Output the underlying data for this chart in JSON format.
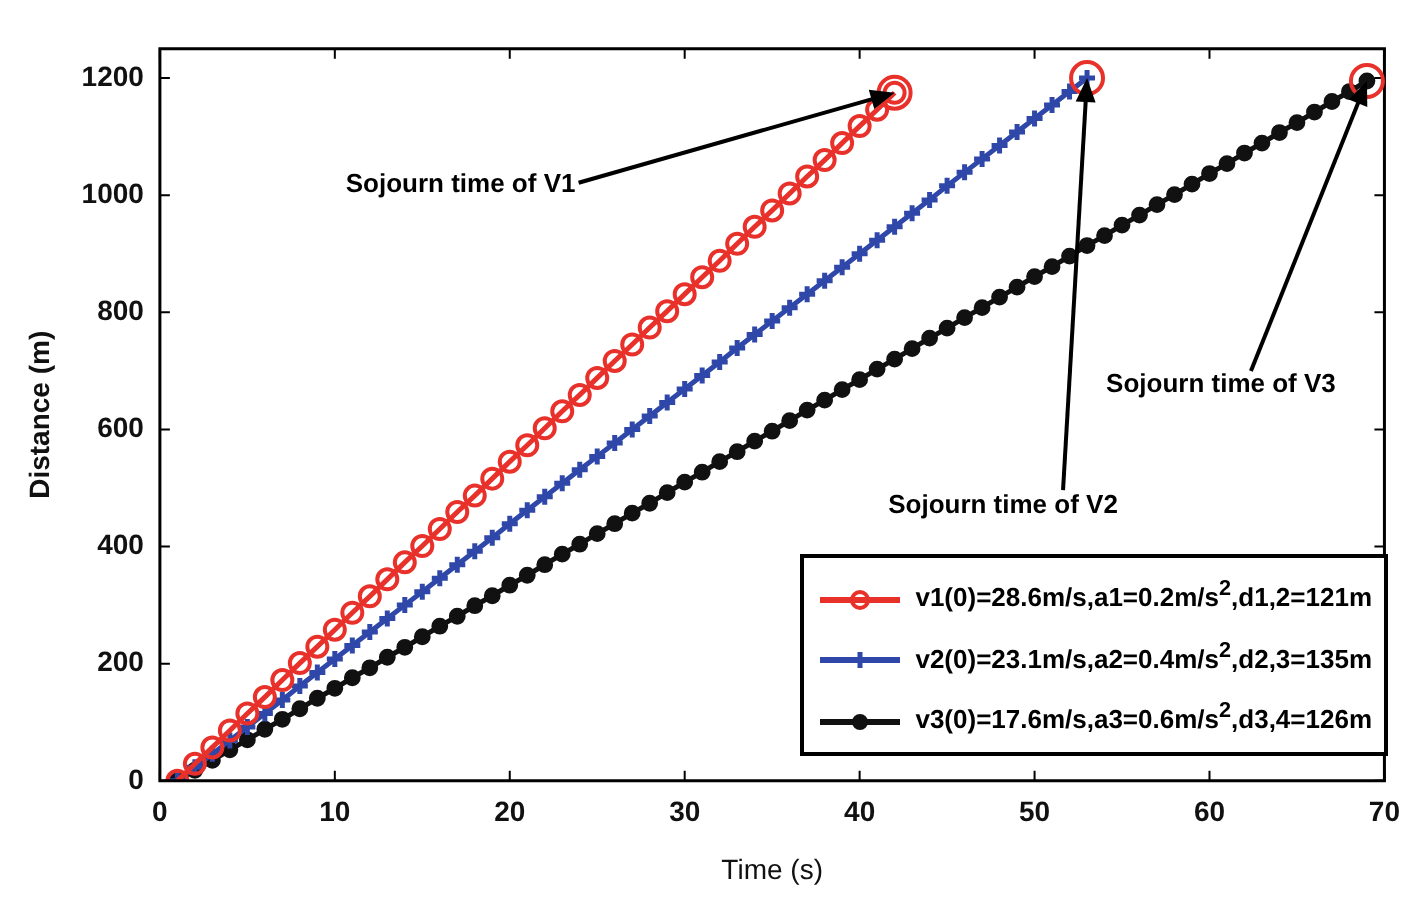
{
  "chart_data": {
    "type": "line",
    "xlabel": "Time (s)",
    "ylabel": "Distance (m)",
    "x": [
      1,
      2,
      3,
      4,
      5,
      6,
      7,
      8,
      9,
      10,
      11,
      12,
      13,
      14,
      15,
      16,
      17,
      18,
      19,
      20,
      21,
      22,
      23,
      24,
      25,
      26,
      27,
      28,
      29,
      30,
      31,
      32,
      33,
      34,
      35,
      36,
      37,
      38,
      39,
      40,
      41,
      42,
      43,
      44,
      45,
      46,
      47,
      48,
      49,
      50,
      51,
      52,
      53,
      54,
      55,
      56,
      57,
      58,
      59,
      60,
      61,
      62,
      63,
      64,
      65,
      66,
      67,
      68,
      69
    ],
    "series": [
      {
        "name": "v1(0)=28.6m/s,a1=0.2m/s$^{2}$,d1,2=121m",
        "color": "#e8312a",
        "marker": "circle",
        "x": [
          1,
          2,
          3,
          4,
          5,
          6,
          7,
          8,
          9,
          10,
          11,
          12,
          13,
          14,
          15,
          16,
          17,
          18,
          19,
          20,
          21,
          22,
          23,
          24,
          25,
          26,
          27,
          28,
          29,
          30,
          31,
          32,
          33,
          34,
          35,
          36,
          37,
          38,
          39,
          40,
          41,
          42
        ],
        "values": [
          0,
          29,
          57,
          86,
          115,
          143,
          172,
          201,
          229,
          258,
          287,
          315,
          344,
          373,
          401,
          430,
          459,
          487,
          516,
          545,
          573,
          602,
          631,
          659,
          688,
          717,
          745,
          774,
          802,
          831,
          860,
          888,
          917,
          946,
          974,
          1003,
          1032,
          1060,
          1089,
          1118,
          1146,
          1175
        ]
      },
      {
        "name": "v2(0)=23.1m/s,a2=0.4m/s$^{2}$,d2,3=135m",
        "color": "#2e47a8",
        "marker": "cross",
        "x": [
          1,
          2,
          3,
          4,
          5,
          6,
          7,
          8,
          9,
          10,
          11,
          12,
          13,
          14,
          15,
          16,
          17,
          18,
          19,
          20,
          21,
          22,
          23,
          24,
          25,
          26,
          27,
          28,
          29,
          30,
          31,
          32,
          33,
          34,
          35,
          36,
          37,
          38,
          39,
          40,
          41,
          42,
          43,
          44,
          45,
          46,
          47,
          48,
          49,
          50,
          51,
          52,
          53
        ],
        "values": [
          0,
          23,
          46,
          69,
          92,
          115,
          138,
          162,
          185,
          208,
          231,
          254,
          277,
          300,
          323,
          346,
          369,
          392,
          415,
          439,
          462,
          485,
          508,
          531,
          554,
          577,
          600,
          623,
          646,
          669,
          692,
          715,
          739,
          762,
          785,
          808,
          831,
          854,
          877,
          900,
          923,
          946,
          969,
          992,
          1016,
          1039,
          1062,
          1085,
          1108,
          1131,
          1154,
          1177,
          1200
        ]
      },
      {
        "name": "v3(0)=17.6m/s,a3=0.6m/s$^{2}$,d3,4=126m",
        "color": "#111111",
        "marker": "circle",
        "values": [
          0,
          18,
          35,
          53,
          70,
          88,
          105,
          123,
          141,
          158,
          176,
          193,
          211,
          228,
          246,
          264,
          281,
          299,
          316,
          334,
          351,
          369,
          387,
          404,
          422,
          439,
          457,
          474,
          492,
          510,
          527,
          545,
          562,
          580,
          597,
          615,
          633,
          650,
          668,
          685,
          703,
          720,
          738,
          756,
          773,
          791,
          808,
          826,
          843,
          861,
          878,
          896,
          914,
          931,
          949,
          966,
          984,
          1001,
          1019,
          1037,
          1054,
          1072,
          1089,
          1107,
          1124,
          1142,
          1160,
          1177,
          1195
        ]
      }
    ],
    "xlim": [
      0,
      70
    ],
    "xticks": [
      0,
      10,
      20,
      30,
      40,
      50,
      60,
      70
    ],
    "ylim": [
      0,
      1250
    ],
    "yticks": [
      0,
      200,
      400,
      600,
      800,
      1000,
      1200
    ],
    "grid": false,
    "legend": "bottom right",
    "line_style": "solid",
    "annotations": [
      {
        "text": "Sojourn time of V1",
        "x": 42,
        "y": 1175
      },
      {
        "text": "Sojourn time of V2",
        "x": 53,
        "y": 1200
      },
      {
        "text": "Sojourn time of V3",
        "x": 69,
        "y": 1195
      }
    ]
  }
}
